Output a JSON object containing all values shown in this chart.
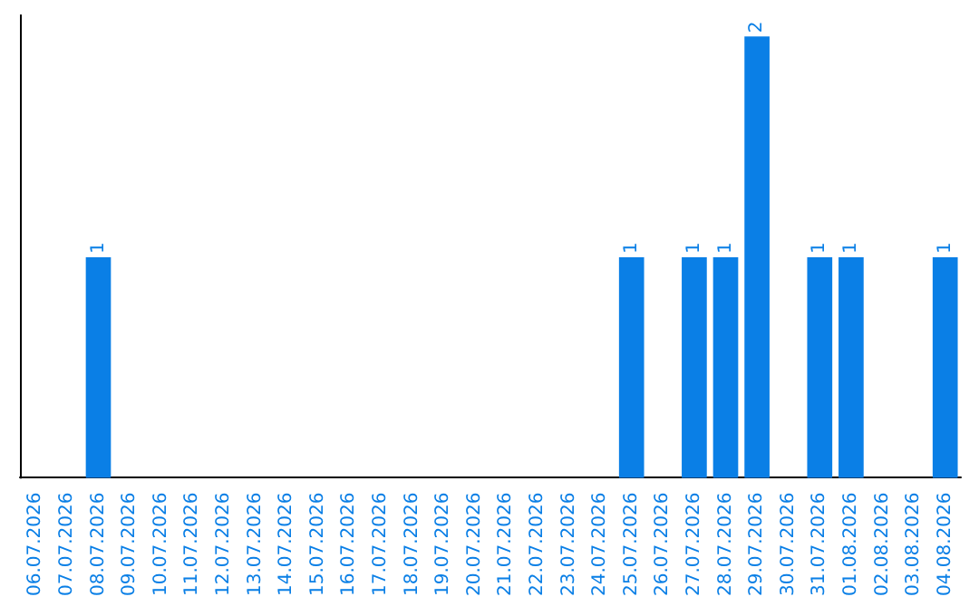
{
  "chart_data": {
    "type": "bar",
    "categories": [
      "06.07.2026",
      "07.07.2026",
      "08.07.2026",
      "09.07.2026",
      "10.07.2026",
      "11.07.2026",
      "12.07.2026",
      "13.07.2026",
      "14.07.2026",
      "15.07.2026",
      "16.07.2026",
      "17.07.2026",
      "18.07.2026",
      "19.07.2026",
      "20.07.2026",
      "21.07.2026",
      "22.07.2026",
      "23.07.2026",
      "24.07.2026",
      "25.07.2026",
      "26.07.2026",
      "27.07.2026",
      "28.07.2026",
      "29.07.2026",
      "30.07.2026",
      "31.07.2026",
      "01.08.2026",
      "02.08.2026",
      "03.08.2026",
      "04.08.2026"
    ],
    "values": [
      0,
      0,
      1,
      0,
      0,
      0,
      0,
      0,
      0,
      0,
      0,
      0,
      0,
      0,
      0,
      0,
      0,
      0,
      0,
      1,
      0,
      1,
      1,
      2,
      0,
      1,
      1,
      0,
      0,
      1
    ],
    "value_labels": [
      null,
      null,
      "1",
      null,
      null,
      null,
      null,
      null,
      null,
      null,
      null,
      null,
      null,
      null,
      null,
      null,
      null,
      null,
      null,
      "1",
      null,
      "1",
      "1",
      "2",
      null,
      "1",
      "1",
      null,
      null,
      "1"
    ],
    "color": "#0a7fe6",
    "ylim": [
      0,
      2.1
    ],
    "tick_labels": "x"
  }
}
